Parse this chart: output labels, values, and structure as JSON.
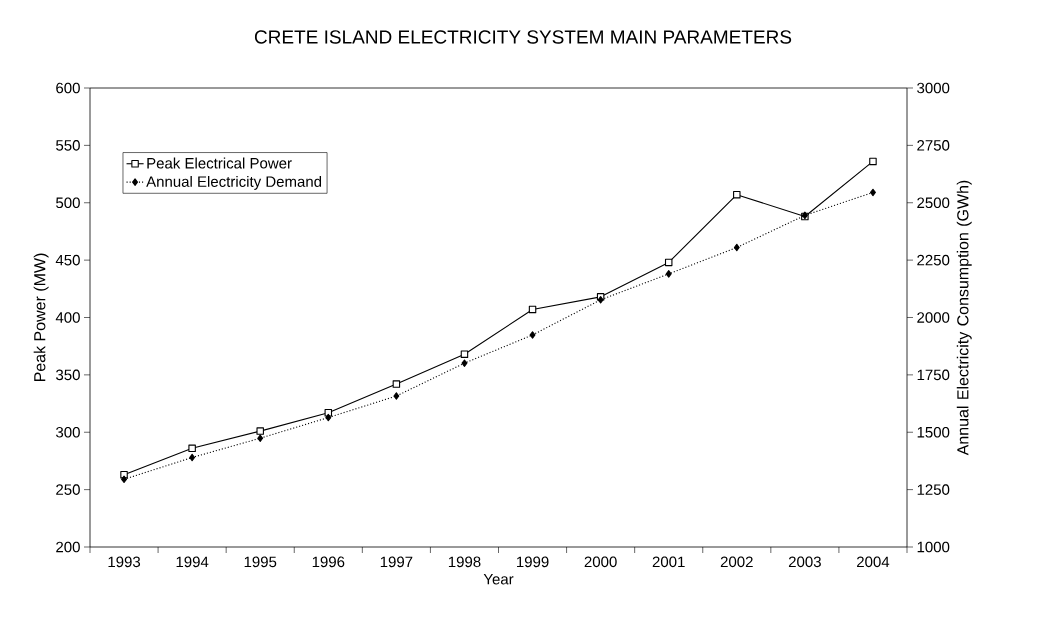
{
  "chart_data": {
    "type": "line",
    "title": "CRETE ISLAND ELECTRICITY SYSTEM MAIN PARAMETERS",
    "xlabel": "Year",
    "ylabel": "Peak Power (MW)",
    "y2label": "Annual Electricity Consumption (GWh)",
    "categories": [
      "1993",
      "1994",
      "1995",
      "1996",
      "1997",
      "1998",
      "1999",
      "2000",
      "2001",
      "2002",
      "2003",
      "2004"
    ],
    "series": [
      {
        "name": "Peak Electrical Power",
        "color": "#000000",
        "marker": "square",
        "line_style": "solid",
        "values": [
          263,
          286,
          301,
          317,
          342,
          368,
          407,
          418,
          448,
          507,
          488,
          536
        ]
      },
      {
        "name": "Annual Electricity Demand",
        "color": "#000000",
        "marker": "diamond",
        "line_style": "dotted",
        "axis": "y2",
        "values": [
          1295,
          1390,
          1474,
          1564,
          1658,
          1801,
          1924,
          2077,
          2190,
          2305,
          2445,
          2545
        ]
      }
    ],
    "ylim": [
      200,
      600
    ],
    "yticks": [
      200,
      250,
      300,
      350,
      400,
      450,
      500,
      550,
      600
    ],
    "y2lim": [
      1000,
      3000
    ],
    "y2ticks": [
      1000,
      1250,
      1500,
      1750,
      2000,
      2250,
      2500,
      2750,
      3000
    ],
    "grid": false,
    "legend": "top left"
  }
}
